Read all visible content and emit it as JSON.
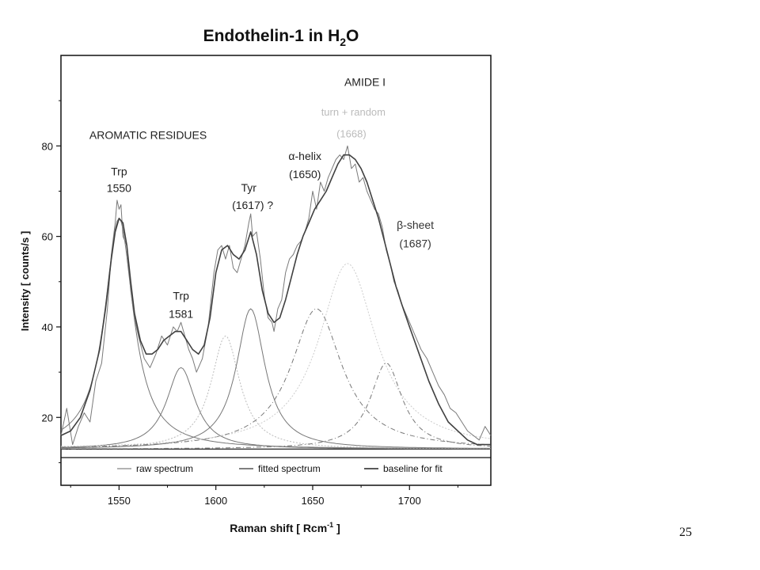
{
  "slide": {
    "page_number": "25"
  },
  "chart_data": {
    "type": "line",
    "title_main": "Endothelin-1 in H",
    "title_sub": "2",
    "title_end": "O",
    "xlabel_main": "Raman shift [ Rcm",
    "xlabel_sup": "-1",
    "xlabel_end": " ]",
    "ylabel": "Intensity [ counts/s ]",
    "xlim": [
      1520,
      1742
    ],
    "ylim": [
      5,
      100
    ],
    "xticks": [
      1550,
      1600,
      1650,
      1700
    ],
    "yticks": [
      20,
      40,
      60,
      80
    ],
    "xtick_labels": [
      "1550",
      "1600",
      "1650",
      "1700"
    ],
    "ytick_labels": [
      "20",
      "40",
      "60",
      "80"
    ],
    "grid": false,
    "legend_position": "bottom",
    "legend": [
      {
        "label": "raw spectrum",
        "color": "#9a9a9a"
      },
      {
        "label": "fitted spectrum",
        "color": "#555555"
      },
      {
        "label": "baseline for fit",
        "color": "#222222"
      }
    ],
    "annotations": [
      {
        "text": "AROMATIC RESIDUES",
        "x": 1565,
        "y": 81.5,
        "color": "#222222",
        "size": 14
      },
      {
        "text": "AMIDE I",
        "x": 1677,
        "y": 93.3,
        "color": "#222222",
        "size": 14
      },
      {
        "text": "turn + random",
        "x": 1671,
        "y": 86.7,
        "color": "#bbbbbb",
        "size": 13
      },
      {
        "text": "(1668)",
        "x": 1670,
        "y": 81.9,
        "color": "#bbbbbb",
        "size": 13
      },
      {
        "text": "Trp",
        "x": 1550,
        "y": 73.5,
        "color": "#222222",
        "size": 14
      },
      {
        "text": "1550",
        "x": 1550,
        "y": 69.8,
        "color": "#222222",
        "size": 14
      },
      {
        "text": "Trp",
        "x": 1582,
        "y": 46.0,
        "color": "#222222",
        "size": 14
      },
      {
        "text": "1581",
        "x": 1582,
        "y": 42.0,
        "color": "#222222",
        "size": 14
      },
      {
        "text": "Tyr",
        "x": 1617,
        "y": 69.9,
        "color": "#222222",
        "size": 14
      },
      {
        "text": "(1617) ?",
        "x": 1619,
        "y": 66.1,
        "color": "#222222",
        "size": 14
      },
      {
        "text": "α-helix",
        "x": 1646,
        "y": 76.9,
        "color": "#222222",
        "size": 14
      },
      {
        "text": "(1650)",
        "x": 1646,
        "y": 72.9,
        "color": "#222222",
        "size": 14
      },
      {
        "text": "β-sheet",
        "x": 1703,
        "y": 61.7,
        "color": "#333333",
        "size": 14
      },
      {
        "text": "(1687)",
        "x": 1703,
        "y": 57.6,
        "color": "#333333",
        "size": 14
      }
    ],
    "baseline_level": 13,
    "series": [
      {
        "name": "raw spectrum",
        "style": "raw",
        "color": "#7a7a7a",
        "x": [
          1520,
          1523,
          1526,
          1529,
          1532,
          1535,
          1538,
          1541,
          1544,
          1546,
          1548,
          1549,
          1550,
          1551,
          1552,
          1554,
          1556,
          1558,
          1560,
          1563,
          1566,
          1569,
          1572,
          1575,
          1578,
          1580,
          1582,
          1584,
          1586,
          1588,
          1590,
          1593,
          1596,
          1599,
          1601,
          1603,
          1605,
          1607,
          1609,
          1611,
          1613,
          1615,
          1617,
          1618,
          1619,
          1621,
          1623,
          1625,
          1627,
          1629,
          1630,
          1632,
          1634,
          1636,
          1638,
          1640,
          1642,
          1644,
          1646,
          1648,
          1650,
          1652,
          1654,
          1656,
          1658,
          1660,
          1662,
          1664,
          1666,
          1668,
          1670,
          1672,
          1674,
          1676,
          1678,
          1680,
          1682,
          1684,
          1686,
          1688,
          1690,
          1692,
          1694,
          1696,
          1698,
          1700,
          1703,
          1706,
          1709,
          1712,
          1715,
          1718,
          1721,
          1724,
          1727,
          1730,
          1733,
          1736,
          1739,
          1742
        ],
        "y": [
          16,
          22,
          14,
          18,
          21,
          19,
          28,
          32,
          44,
          56,
          63,
          68,
          66,
          67,
          60,
          58,
          48,
          42,
          38,
          33,
          31,
          34,
          38,
          36,
          40,
          39,
          41,
          38,
          35,
          33,
          30,
          33,
          40,
          52,
          57,
          58,
          55,
          58,
          53,
          52,
          55,
          58,
          63,
          65,
          60,
          61,
          55,
          47,
          42,
          41,
          39,
          44,
          46,
          52,
          55,
          56,
          58,
          59,
          61,
          64,
          70,
          66,
          72,
          70,
          73,
          75,
          77,
          78,
          77,
          80,
          75,
          76,
          72,
          73,
          70,
          68,
          66,
          65,
          62,
          57,
          54,
          50,
          48,
          45,
          43,
          41,
          38,
          35,
          33,
          30,
          27,
          25,
          22,
          21,
          19,
          17,
          16,
          15,
          18,
          16
        ]
      },
      {
        "name": "fitted spectrum",
        "style": "fit",
        "color": "#404040",
        "x": [
          1520,
          1525,
          1530,
          1535,
          1540,
          1543,
          1546,
          1548,
          1550,
          1552,
          1554,
          1556,
          1558,
          1561,
          1564,
          1567,
          1570,
          1573,
          1576,
          1579,
          1582,
          1585,
          1588,
          1591,
          1594,
          1597,
          1600,
          1603,
          1606,
          1609,
          1612,
          1615,
          1618,
          1621,
          1624,
          1627,
          1630,
          1633,
          1636,
          1639,
          1642,
          1645,
          1648,
          1651,
          1654,
          1657,
          1660,
          1663,
          1666,
          1669,
          1672,
          1675,
          1678,
          1681,
          1684,
          1687,
          1690,
          1693,
          1696,
          1700,
          1705,
          1710,
          1715,
          1720,
          1725,
          1730,
          1735,
          1742
        ],
        "y": [
          16,
          17,
          20,
          26,
          35,
          44,
          55,
          61,
          64,
          63,
          58,
          50,
          43,
          37,
          34,
          34,
          35,
          37,
          38,
          39,
          39,
          37,
          35,
          34,
          36,
          42,
          52,
          57,
          58,
          56,
          55,
          57,
          61,
          56,
          48,
          43,
          41,
          42,
          46,
          51,
          56,
          60,
          63,
          66,
          68,
          70,
          73,
          76,
          78,
          78,
          77,
          75,
          72,
          68,
          64,
          59,
          54,
          49,
          45,
          40,
          34,
          28,
          23,
          19,
          17,
          15,
          14,
          14
        ]
      },
      {
        "name": "component 1550",
        "style": "peak",
        "color": "#777777",
        "dash": "none",
        "center": 1550,
        "height": 51,
        "width": 9
      },
      {
        "name": "component 1581",
        "style": "peak",
        "color": "#777777",
        "dash": "none",
        "center": 1582,
        "height": 18,
        "width": 9
      },
      {
        "name": "component 1605",
        "style": "peak",
        "color": "#bbbbbb",
        "dash": "2 2",
        "center": 1605,
        "height": 25,
        "width": 9
      },
      {
        "name": "component 1617",
        "style": "peak",
        "color": "#777777",
        "dash": "none",
        "center": 1618,
        "height": 31,
        "width": 9
      },
      {
        "name": "component 1650",
        "style": "peak",
        "color": "#777777",
        "dash": "6 3 1 3",
        "center": 1652,
        "height": 31,
        "width": 16
      },
      {
        "name": "component 1668",
        "style": "peak",
        "color": "#cccccc",
        "dash": "2 2",
        "center": 1668,
        "height": 41,
        "width": 18
      },
      {
        "name": "component 1687",
        "style": "peak",
        "color": "#777777",
        "dash": "6 3 1 3",
        "center": 1688,
        "height": 19,
        "width": 10
      }
    ]
  }
}
